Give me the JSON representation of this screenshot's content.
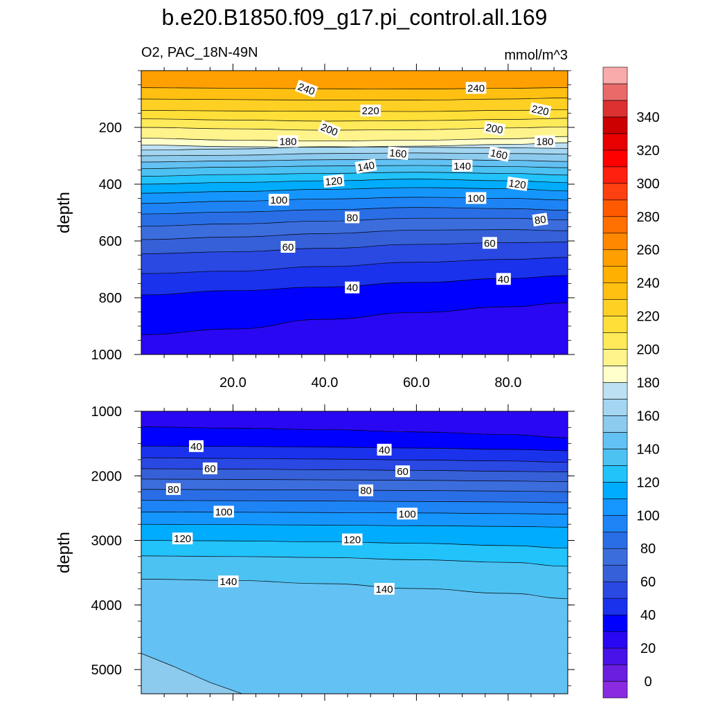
{
  "chart_data": {
    "type": "contour",
    "title": "b.e20.B1850.f09_g17.pi_control.all.169",
    "subtitle_left": "O2, PAC_18N-49N",
    "subtitle_right": "mmol/m^3",
    "colorbar": {
      "levels": [
        0,
        10,
        20,
        30,
        40,
        50,
        60,
        70,
        80,
        90,
        100,
        110,
        120,
        130,
        140,
        150,
        160,
        170,
        180,
        190,
        200,
        210,
        220,
        230,
        240,
        250,
        260,
        270,
        280,
        290,
        300,
        310,
        320,
        330,
        340,
        350
      ],
      "colors": [
        "#8a2be2",
        "#6a1ee0",
        "#4812e8",
        "#2a07f2",
        "#0000ff",
        "#1a32ec",
        "#2a48e2",
        "#3560d8",
        "#3c6ddd",
        "#2a6ee6",
        "#1e84f5",
        "#1596ff",
        "#00acfd",
        "#22c2fb",
        "#4cc2f3",
        "#63c1f3",
        "#8ccaee",
        "#a4d6f1",
        "#bde1f3",
        "#ffffcc",
        "#fff48c",
        "#ffea5a",
        "#ffdf38",
        "#ffd024",
        "#ffc012",
        "#ffb000",
        "#ffa000",
        "#ff8800",
        "#ff7000",
        "#ff5a00",
        "#ff4010",
        "#ff2010",
        "#ff0000",
        "#e80000",
        "#cc0000",
        "#dd3030",
        "#ea6a6a",
        "#f9aaaa"
      ],
      "tick_labels": [
        "0",
        "20",
        "40",
        "60",
        "80",
        "100",
        "120",
        "140",
        "160",
        "180",
        "200",
        "220",
        "240",
        "260",
        "280",
        "300",
        "320",
        "340"
      ]
    },
    "panels": [
      {
        "ylabel": "depth",
        "ylim": [
          0,
          1000
        ],
        "y_ticks": [
          200,
          400,
          600,
          800,
          1000
        ],
        "y_tick_labels": [
          "200",
          "400",
          "600",
          "800",
          "1000"
        ],
        "xlim": [
          0,
          93
        ],
        "x_ticks": [
          20,
          40,
          60,
          80
        ],
        "x_tick_labels": [
          "20.0",
          "40.0",
          "60.0",
          "80.0"
        ],
        "x_columns": [
          0,
          20,
          40,
          60,
          80,
          93
        ],
        "contours": [
          {
            "value": 240,
            "depths": [
              60,
              62,
              64,
              65,
              62,
              60
            ]
          },
          {
            "value": 230,
            "depths": [
              100,
              102,
              104,
              104,
              100,
              96
            ]
          },
          {
            "value": 220,
            "depths": [
              140,
              142,
              143,
              144,
              140,
              138
            ]
          },
          {
            "value": 210,
            "depths": [
              170,
              174,
              178,
              176,
              172,
              168
            ]
          },
          {
            "value": 200,
            "depths": [
              200,
              205,
              210,
              208,
              202,
              198
            ]
          },
          {
            "value": 190,
            "depths": [
              238,
              245,
              248,
              245,
              240,
              232
            ]
          },
          {
            "value": 180,
            "depths": [
              262,
              268,
              270,
              266,
              260,
              254
            ]
          },
          {
            "value": 170,
            "depths": [
              280,
              276,
              268,
              270,
              272,
              274
            ]
          },
          {
            "value": 160,
            "depths": [
              300,
              298,
              292,
              290,
              292,
              294
            ]
          },
          {
            "value": 150,
            "depths": [
              322,
              318,
              314,
              312,
              316,
              320
            ]
          },
          {
            "value": 140,
            "depths": [
              345,
              340,
              336,
              334,
              338,
              342
            ]
          },
          {
            "value": 130,
            "depths": [
              372,
              366,
              362,
              358,
              362,
              368
            ]
          },
          {
            "value": 120,
            "depths": [
              400,
              394,
              388,
              382,
              388,
              394
            ]
          },
          {
            "value": 110,
            "depths": [
              432,
              426,
              418,
              412,
              416,
              424
            ]
          },
          {
            "value": 100,
            "depths": [
              468,
              460,
              452,
              446,
              450,
              456
            ]
          },
          {
            "value": 90,
            "depths": [
              505,
              498,
              490,
              482,
              486,
              492
            ]
          },
          {
            "value": 80,
            "depths": [
              548,
              540,
              530,
              520,
              520,
              526
            ]
          },
          {
            "value": 70,
            "depths": [
              595,
              586,
              574,
              562,
              560,
              564
            ]
          },
          {
            "value": 60,
            "depths": [
              645,
              638,
              626,
              612,
              606,
              604
            ]
          },
          {
            "value": 50,
            "depths": [
              715,
              706,
              690,
              675,
              665,
              658
            ]
          },
          {
            "value": 40,
            "depths": [
              790,
              775,
              762,
              746,
              732,
              722
            ]
          },
          {
            "value": 30,
            "depths": [
              930,
              910,
              876,
              852,
              832,
              818
            ]
          }
        ],
        "labels": [
          {
            "text": "240",
            "x": 36,
            "depth": 65,
            "angle": 20
          },
          {
            "text": "240",
            "x": 73,
            "depth": 62,
            "angle": 0
          },
          {
            "text": "220",
            "x": 50,
            "depth": 142,
            "angle": 0
          },
          {
            "text": "220",
            "x": 87,
            "depth": 140,
            "angle": 12
          },
          {
            "text": "200",
            "x": 41,
            "depth": 208,
            "angle": 22
          },
          {
            "text": "200",
            "x": 77,
            "depth": 205,
            "angle": 10
          },
          {
            "text": "180",
            "x": 32,
            "depth": 250,
            "angle": 0
          },
          {
            "text": "180",
            "x": 88,
            "depth": 250,
            "angle": 0
          },
          {
            "text": "160",
            "x": 56,
            "depth": 292,
            "angle": 5
          },
          {
            "text": "160",
            "x": 78,
            "depth": 295,
            "angle": 12
          },
          {
            "text": "140",
            "x": 49,
            "depth": 338,
            "angle": -10
          },
          {
            "text": "140",
            "x": 70,
            "depth": 336,
            "angle": 0
          },
          {
            "text": "120",
            "x": 42,
            "depth": 390,
            "angle": -5
          },
          {
            "text": "120",
            "x": 82,
            "depth": 400,
            "angle": 8
          },
          {
            "text": "100",
            "x": 30,
            "depth": 456,
            "angle": 0
          },
          {
            "text": "100",
            "x": 73,
            "depth": 450,
            "angle": 0
          },
          {
            "text": "80",
            "x": 46,
            "depth": 518,
            "angle": 0
          },
          {
            "text": "80",
            "x": 87,
            "depth": 526,
            "angle": -8
          },
          {
            "text": "60",
            "x": 32,
            "depth": 622,
            "angle": 0
          },
          {
            "text": "60",
            "x": 76,
            "depth": 608,
            "angle": 0
          },
          {
            "text": "40",
            "x": 46,
            "depth": 765,
            "angle": 0
          },
          {
            "text": "40",
            "x": 79,
            "depth": 735,
            "angle": 0
          }
        ]
      },
      {
        "ylabel": "depth",
        "ylim": [
          1000,
          5375
        ],
        "y_ticks": [
          1000,
          2000,
          3000,
          4000,
          5000
        ],
        "y_tick_labels": [
          "1000",
          "2000",
          "3000",
          "4000",
          "5000"
        ],
        "xlim": [
          0,
          93
        ],
        "x_ticks": [
          20,
          40,
          60,
          80
        ],
        "x_tick_labels": [],
        "x_columns": [
          0,
          20,
          40,
          60,
          80,
          93
        ],
        "contours": [
          {
            "value": 30,
            "depths": [
              1240,
              1260,
              1285,
              1320,
              1360,
              1410
            ]
          },
          {
            "value": 40,
            "depths": [
              1540,
              1545,
              1555,
              1570,
              1590,
              1610
            ]
          },
          {
            "value": 50,
            "depths": [
              1720,
              1730,
              1740,
              1755,
              1770,
              1790
            ]
          },
          {
            "value": 60,
            "depths": [
              1890,
              1895,
              1905,
              1915,
              1930,
              1940
            ]
          },
          {
            "value": 70,
            "depths": [
              2050,
              2055,
              2062,
              2070,
              2080,
              2090
            ]
          },
          {
            "value": 80,
            "depths": [
              2210,
              2214,
              2220,
              2228,
              2236,
              2245
            ]
          },
          {
            "value": 90,
            "depths": [
              2380,
              2385,
              2390,
              2397,
              2405,
              2415
            ]
          },
          {
            "value": 100,
            "depths": [
              2560,
              2563,
              2568,
              2575,
              2585,
              2595
            ]
          },
          {
            "value": 110,
            "depths": [
              2750,
              2755,
              2763,
              2772,
              2783,
              2795
            ]
          },
          {
            "value": 120,
            "depths": [
              3000,
              3008,
              3022,
              3045,
              3080,
              3120
            ]
          },
          {
            "value": 130,
            "depths": [
              3240,
              3250,
              3265,
              3300,
              3340,
              3400
            ]
          },
          {
            "value": 140,
            "depths": [
              3600,
              3620,
              3670,
              3745,
              3820,
              3900
            ]
          }
        ],
        "extra_region": {
          "value": 150,
          "points": [
            [
              0,
              4750
            ],
            [
              7,
              4950
            ],
            [
              15,
              5200
            ],
            [
              22,
              5375
            ]
          ]
        },
        "labels": [
          {
            "text": "40",
            "x": 12,
            "depth": 1545,
            "angle": 0
          },
          {
            "text": "40",
            "x": 53,
            "depth": 1600,
            "angle": 0
          },
          {
            "text": "60",
            "x": 15,
            "depth": 1890,
            "angle": 0
          },
          {
            "text": "60",
            "x": 57,
            "depth": 1935,
            "angle": 0
          },
          {
            "text": "80",
            "x": 7,
            "depth": 2210,
            "angle": 0
          },
          {
            "text": "80",
            "x": 49,
            "depth": 2230,
            "angle": 0
          },
          {
            "text": "100",
            "x": 18,
            "depth": 2560,
            "angle": 0
          },
          {
            "text": "100",
            "x": 58,
            "depth": 2590,
            "angle": 0
          },
          {
            "text": "120",
            "x": 9,
            "depth": 2975,
            "angle": 0
          },
          {
            "text": "120",
            "x": 46,
            "depth": 2990,
            "angle": 0
          },
          {
            "text": "140",
            "x": 19,
            "depth": 3640,
            "angle": 0
          },
          {
            "text": "140",
            "x": 53,
            "depth": 3755,
            "angle": 0
          }
        ]
      }
    ]
  }
}
